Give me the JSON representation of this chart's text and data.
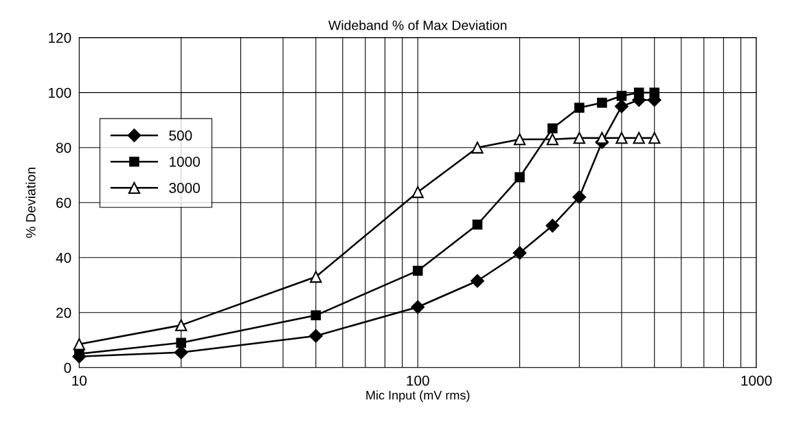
{
  "chart_data": {
    "type": "line",
    "title": "Wideband % of Max Deviation",
    "xlabel": "Mic Input (mV rms)",
    "ylabel": "% Deviation",
    "log": "x",
    "xlim": [
      10,
      1000
    ],
    "xticks": [
      10,
      100,
      1000
    ],
    "ylim": [
      0,
      120
    ],
    "yticks": [
      0,
      20,
      40,
      60,
      80,
      100,
      120
    ],
    "grid": true,
    "legend": "left",
    "line_style": "solid",
    "series": [
      {
        "name": "500",
        "color": "#000000",
        "marker": "diamond",
        "x": [
          10,
          20,
          50,
          100,
          150,
          200,
          250,
          300,
          350,
          400,
          450,
          500
        ],
        "values": [
          4,
          5.5,
          11.5,
          22,
          31.5,
          41.7,
          51.6,
          62,
          82,
          95,
          97.3,
          97.3
        ]
      },
      {
        "name": "1000",
        "color": "#000000",
        "marker": "square",
        "x": [
          10,
          20,
          50,
          100,
          150,
          200,
          250,
          300,
          350,
          400,
          450,
          500
        ],
        "values": [
          5,
          9,
          19,
          35.2,
          52,
          69.2,
          87,
          94.5,
          96.3,
          98.8,
          100,
          100
        ]
      },
      {
        "name": "3000",
        "color": "#000000",
        "marker": "triangle",
        "x": [
          10,
          20,
          50,
          100,
          150,
          200,
          250,
          300,
          350,
          400,
          450,
          500
        ],
        "values": [
          8.5,
          15.4,
          33,
          63.8,
          80,
          83,
          83,
          83.5,
          83.5,
          83.5,
          83.5,
          83.5
        ]
      }
    ]
  }
}
